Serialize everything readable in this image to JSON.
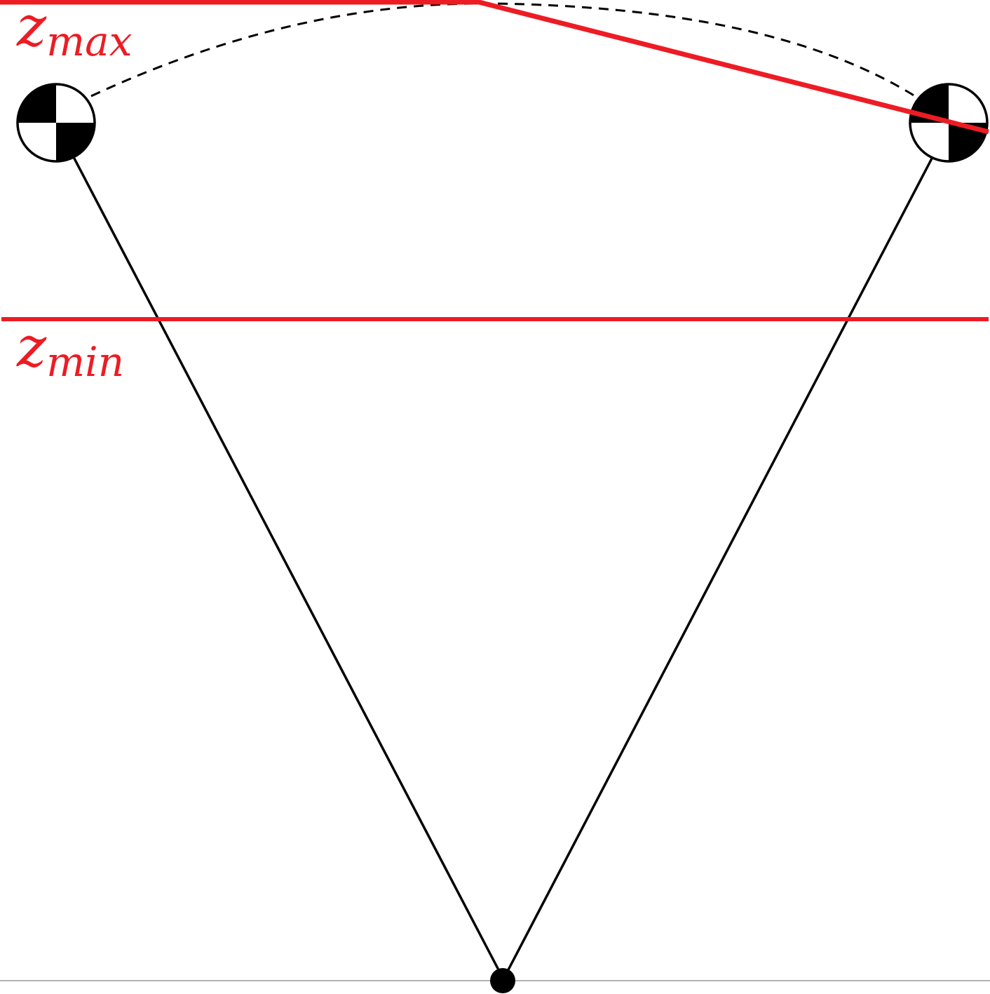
{
  "labels": {
    "z_max": {
      "base": "z",
      "subscript": "max"
    },
    "z_min": {
      "base": "z",
      "subscript": "min"
    }
  },
  "colors": {
    "limit_line": "#ED1C24",
    "structure": "#000000",
    "ground": "#999999",
    "background": "#ffffff"
  },
  "icons": {
    "mass_left": "center-of-mass-icon",
    "mass_right": "center-of-mass-icon",
    "pivot": "pivot-point-icon"
  }
}
